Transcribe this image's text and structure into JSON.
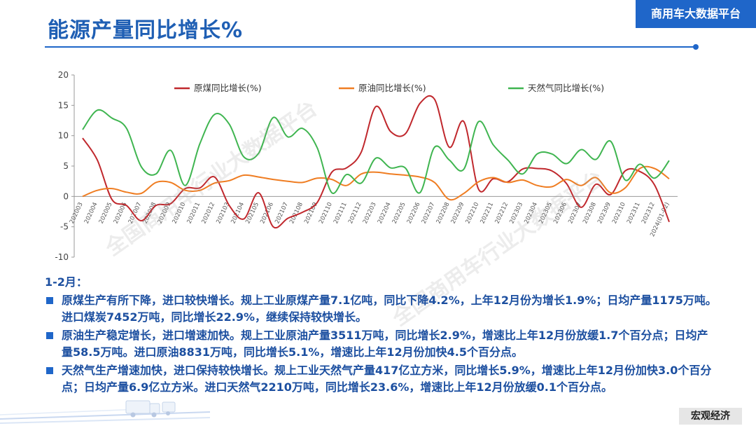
{
  "header": {
    "title": "能源产量同比增长%",
    "brand": "商用车大数据平台"
  },
  "watermark": "全国商用车行业大数据平台",
  "chart_data": {
    "type": "line",
    "categories": [
      "202003",
      "202004",
      "202005",
      "202006",
      "202007",
      "202008",
      "202009",
      "202010",
      "202011",
      "202012",
      "202103",
      "202104",
      "202105",
      "202106",
      "202107",
      "202108",
      "202109",
      "202110",
      "202111",
      "202112",
      "202203",
      "202204",
      "202205",
      "202206",
      "202207",
      "202208",
      "202209",
      "202210",
      "202211",
      "202212",
      "202303",
      "202304",
      "202305",
      "202306",
      "202307",
      "202308",
      "202309",
      "202310",
      "202311",
      "202312",
      "2024(01-02)"
    ],
    "ylim": [
      -10,
      20
    ],
    "yticks": [
      -10,
      -5,
      0,
      5,
      10,
      15,
      20
    ],
    "legend_position": "top",
    "series": [
      {
        "name": "原煤同比增长(%)",
        "color": "#c0282d",
        "values": [
          9.6,
          6.0,
          -0.5,
          -1.5,
          -4.0,
          -1.5,
          -1.2,
          1.3,
          1.4,
          3.2,
          -1.5,
          -3.7,
          0.6,
          -5.0,
          -3.6,
          -2.6,
          -1.0,
          4.0,
          4.7,
          7.3,
          14.8,
          10.7,
          10.3,
          15.3,
          16.0,
          8.1,
          12.3,
          1.2,
          2.9,
          2.4,
          4.5,
          4.6,
          4.2,
          2.1,
          -1.8,
          2.0,
          0.3,
          4.2,
          4.1,
          1.9,
          -4.2
        ]
      },
      {
        "name": "原油同比增长(%)",
        "color": "#ef7d22",
        "values": [
          0.0,
          1.0,
          1.3,
          0.7,
          0.5,
          2.3,
          2.3,
          1.0,
          1.0,
          2.2,
          2.6,
          3.5,
          3.2,
          2.8,
          2.5,
          2.3,
          3.0,
          2.8,
          1.8,
          3.7,
          4.0,
          3.7,
          3.5,
          3.2,
          2.3,
          -0.5,
          0.5,
          2.4,
          3.1,
          2.3,
          2.7,
          1.8,
          1.6,
          2.8,
          1.8,
          3.1,
          0.6,
          1.4,
          4.6,
          4.6,
          2.9
        ]
      },
      {
        "name": "天然气同比增长(%)",
        "color": "#3fb550",
        "values": [
          11.0,
          14.2,
          12.9,
          11.2,
          4.9,
          3.7,
          7.6,
          1.8,
          8.7,
          13.5,
          11.9,
          6.5,
          7.1,
          13.0,
          9.8,
          11.2,
          8.0,
          0.6,
          3.6,
          2.2,
          6.3,
          4.7,
          4.7,
          0.6,
          8.1,
          6.0,
          4.5,
          12.3,
          8.5,
          6.0,
          3.7,
          7.0,
          7.0,
          5.4,
          7.7,
          6.1,
          9.1,
          2.7,
          5.3,
          3.0,
          5.9
        ]
      }
    ]
  },
  "notes": {
    "period": "1-2月：",
    "items": [
      "原煤生产有所下降，进口较快增长。规上工业原煤产量7.1亿吨，同比下降4.2%，上年12月份为增长1.9%；日均产量1175万吨。进口煤炭7452万吨，同比增长22.9%，继续保持较快增长。",
      "原油生产稳定增长，进口增速加快。规上工业原油产量3511万吨，同比增长2.9%，增速比上年12月份放缓1.7个百分点；日均产量58.5万吨。进口原油8831万吨，同比增长5.1%，增速比上年12月份加快4.5个百分点。",
      "天然气生产增速加快，进口保持较快增长。规上工业天然气产量417亿立方米，同比增长5.9%，增速比上年12月份加快3.0个百分点；日均产量6.9亿立方米。进口天然气2210万吨，同比增长23.6%，增速比上年12月份放缓0.1个百分点。"
    ]
  },
  "footer": {
    "tag": "宏观经济"
  }
}
